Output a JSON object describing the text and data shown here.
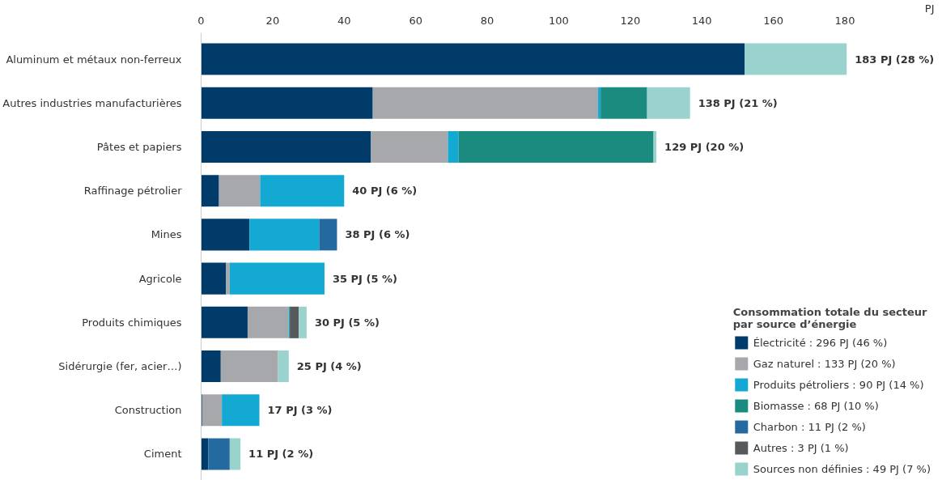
{
  "chart_data": {
    "type": "bar",
    "orientation": "horizontal",
    "stacked": true,
    "xlabel": "PJ",
    "legend_title": "Consommation totale du secteur\npar source d’énergie",
    "legend": "bottom right",
    "grid": false,
    "categories": [
      "Aluminum et métaux non-ferreux",
      "Autres industries manufacturières",
      "Pâtes et papiers",
      "Raffinage pétrolier",
      "Mines",
      "Agricole",
      "Produits chimiques",
      "Sidérurgie (fer, acier…)",
      "Construction",
      "Ciment"
    ],
    "xlim": [
      0,
      205
    ],
    "xticks": [
      0,
      20,
      40,
      60,
      80,
      100,
      120,
      140,
      160,
      180
    ],
    "series": [
      {
        "name": "Électricité : 296 PJ (46 %)",
        "color": "#003b6a",
        "values": [
          152,
          48,
          47.5,
          5,
          13.5,
          7,
          13,
          5.5,
          0.3,
          2
        ]
      },
      {
        "name": "Gaz naturel : 133 PJ (20 %)",
        "color": "#a7a8ab",
        "values": [
          null,
          63,
          21.5,
          11.5,
          null,
          1,
          11.5,
          16,
          5.5,
          null
        ]
      },
      {
        "name": "Produits pétroliers : 90 PJ (14 %)",
        "color": "#14a9d3",
        "values": [
          null,
          0.7,
          3,
          23.5,
          19.5,
          26.5,
          0.3,
          null,
          10.5,
          null
        ]
      },
      {
        "name": "Biomasse : 68 PJ (10 %)",
        "color": "#1a8b7e",
        "values": [
          null,
          13,
          54.5,
          null,
          null,
          null,
          null,
          null,
          null,
          null
        ]
      },
      {
        "name": "Charbon : 11 PJ (2 %)",
        "color": "#246aa0",
        "values": [
          null,
          null,
          null,
          null,
          5,
          null,
          null,
          null,
          null,
          6
        ]
      },
      {
        "name": "Autres : 3 PJ (1 %)",
        "color": "#58595b",
        "values": [
          null,
          null,
          null,
          null,
          null,
          null,
          2.5,
          null,
          null,
          null
        ]
      },
      {
        "name": "Sources non définies : 49 PJ (7 %)",
        "color": "#9ad2cd",
        "values": [
          28.5,
          12,
          0.8,
          null,
          null,
          null,
          2.2,
          3,
          null,
          3
        ]
      }
    ],
    "value_labels": [
      "183 PJ (28 %)",
      "138 PJ (21 %)",
      "129 PJ (20 %)",
      "40 PJ (6 %)",
      "38 PJ (6 %)",
      "35 PJ (5 %)",
      "30 PJ (5 %)",
      "25 PJ (4 %)",
      "17 PJ (3 %)",
      "11 PJ (2 %)"
    ]
  }
}
